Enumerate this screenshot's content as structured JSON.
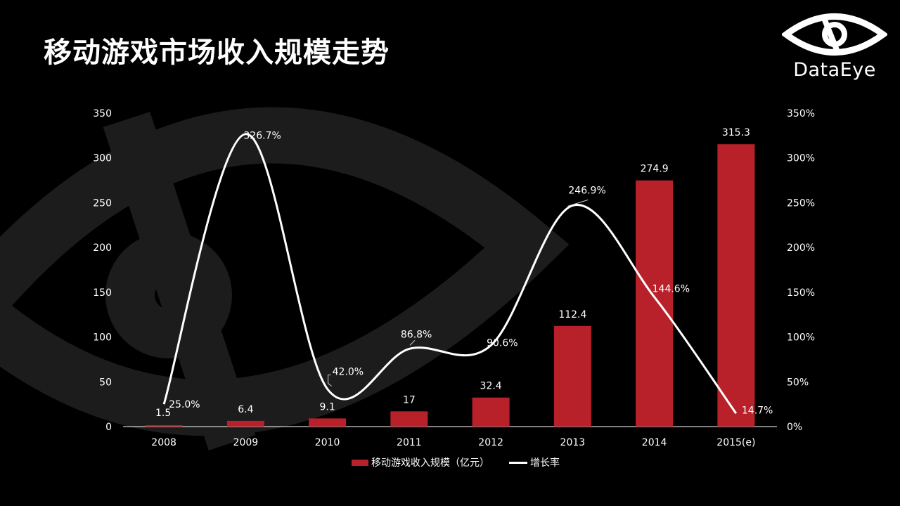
{
  "title": "移动游戏市场收入规模走势",
  "logo": {
    "text": "DataEye",
    "icon": "eye-logo-icon"
  },
  "colors": {
    "bar": "#b9212a",
    "line": "#ffffff",
    "axis": "#ffffff",
    "background": "#000000",
    "watermark": "#1c1c1c"
  },
  "chart_data": {
    "type": "bar",
    "categories": [
      "2008",
      "2009",
      "2010",
      "2011",
      "2012",
      "2013",
      "2014",
      "2015(e)"
    ],
    "series": [
      {
        "name": "移动游戏收入规模（亿元）",
        "type": "bar",
        "axis": "left",
        "values": [
          1.5,
          6.4,
          9.1,
          17,
          32.4,
          112.4,
          274.9,
          315.3
        ],
        "labels": [
          "1.5",
          "6.4",
          "9.1",
          "17",
          "32.4",
          "112.4",
          "274.9",
          "315.3"
        ]
      },
      {
        "name": "增长率",
        "type": "line",
        "axis": "right",
        "values": [
          25.0,
          326.7,
          42.0,
          86.8,
          90.6,
          246.9,
          144.6,
          14.7
        ],
        "labels": [
          "25.0%",
          "326.7%",
          "42.0%",
          "86.8%",
          "90.6%",
          "246.9%",
          "144.6%",
          "14.7%"
        ]
      }
    ],
    "y_left": {
      "range": [
        0,
        350
      ],
      "ticks": [
        "0",
        "50",
        "100",
        "150",
        "200",
        "250",
        "300",
        "350"
      ]
    },
    "y_right": {
      "range": [
        0,
        350
      ],
      "ticks": [
        "0%",
        "50%",
        "100%",
        "150%",
        "200%",
        "250%",
        "300%",
        "350%"
      ]
    },
    "grid": false,
    "legend_position": "bottom"
  }
}
